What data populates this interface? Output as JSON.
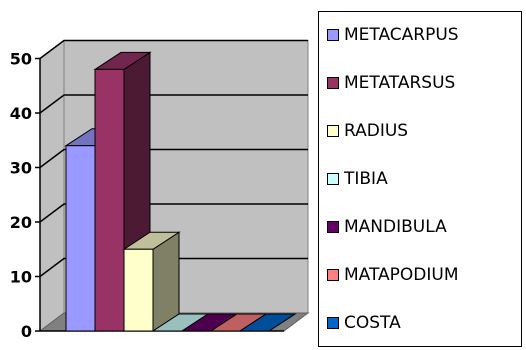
{
  "chart_data": {
    "type": "bar",
    "categories": [
      "METACARPUS",
      "METATARSUS",
      "RADIUS",
      "TIBIA",
      "MANDIBULA",
      "MATAPODIUM",
      "COSTA"
    ],
    "series": [
      {
        "values": [
          34,
          48,
          15,
          0,
          0,
          0,
          0
        ]
      }
    ],
    "colors": [
      "#9999ff",
      "#993366",
      "#ffffcc",
      "#ccffff",
      "#660066",
      "#ff8080",
      "#0066cc"
    ],
    "y_ticks": [
      "0",
      "10",
      "20",
      "30",
      "40",
      "50"
    ],
    "ylim": [
      0,
      50
    ],
    "grid": true,
    "legend_position": "right",
    "style": "3d-column",
    "title": "",
    "xlabel": "",
    "ylabel": ""
  }
}
